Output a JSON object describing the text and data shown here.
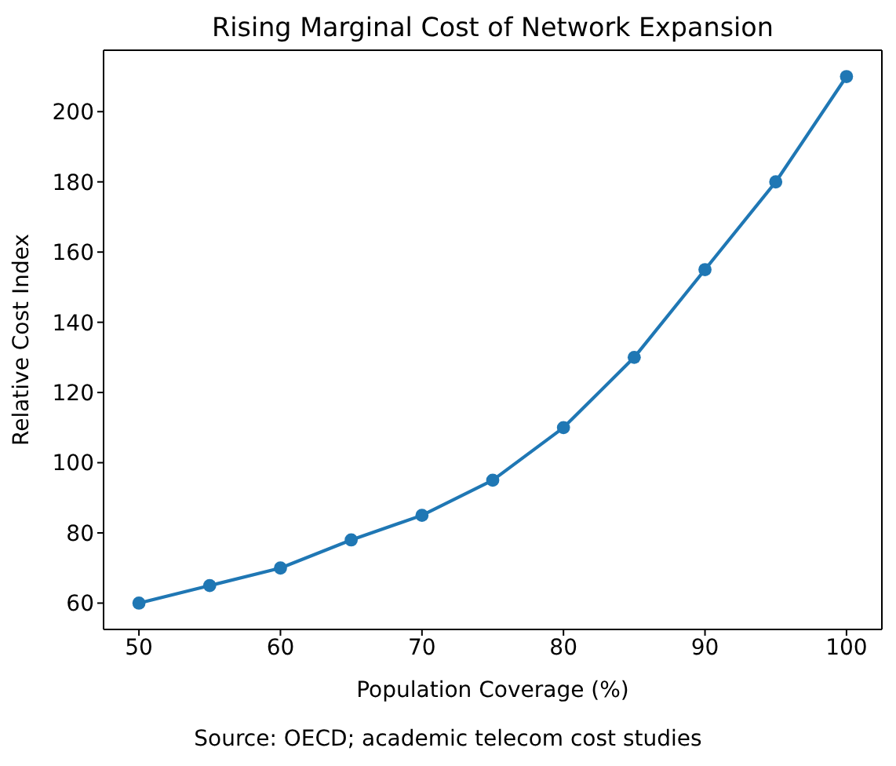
{
  "chart_data": {
    "type": "line",
    "title": "Rising Marginal Cost of Network Expansion",
    "xlabel": "Population Coverage (%)",
    "ylabel": "Relative Cost Index",
    "annotations": [
      "Source: OECD; academic telecom cost studies"
    ],
    "x": [
      50,
      55,
      60,
      65,
      70,
      75,
      80,
      85,
      90,
      95,
      100
    ],
    "series": [
      {
        "color": "#1f77b4",
        "values": [
          60,
          65,
          70,
          78,
          85,
          95,
          110,
          130,
          155,
          180,
          210
        ]
      }
    ],
    "xlim": [
      47.5,
      102.5
    ],
    "ylim": [
      52.5,
      217.5
    ],
    "xticks": [
      50,
      60,
      70,
      80,
      90,
      100
    ],
    "yticks": [
      60,
      80,
      100,
      120,
      140,
      160,
      180,
      200
    ],
    "marker": "circle",
    "line_style": "solid"
  }
}
